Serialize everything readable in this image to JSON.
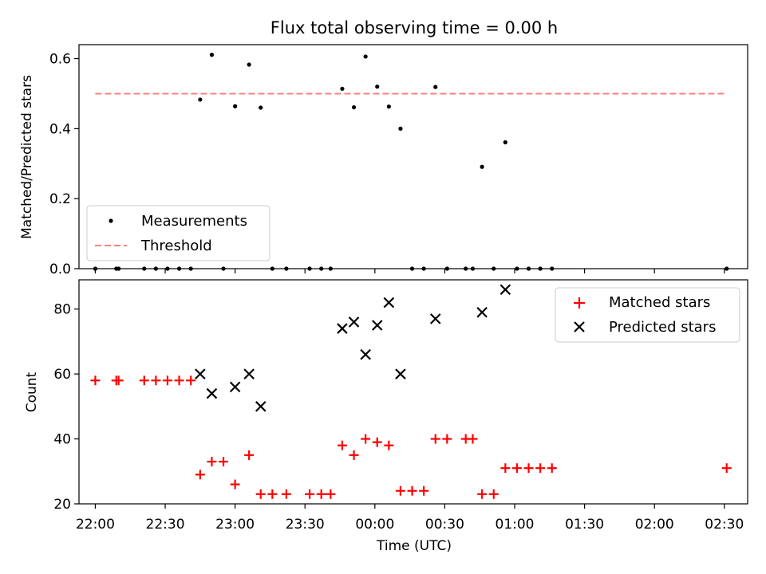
{
  "chart_data": {
    "title": "Flux total observing time = 0.00 h",
    "xlabel": "Time (UTC)",
    "x_ticks": [
      "22:00",
      "22:30",
      "23:00",
      "23:30",
      "00:00",
      "00:30",
      "01:00",
      "01:30",
      "02:00",
      "02:30"
    ],
    "x_range": [
      "21:53",
      "02:40"
    ],
    "panels": [
      {
        "type": "scatter",
        "ylabel": "Matched/Predicted stars",
        "ylim": [
          0,
          0.64
        ],
        "y_ticks": [
          "0.0",
          "0.2",
          "0.4",
          "0.6"
        ],
        "legend_position": "lower-left",
        "series": [
          {
            "name": "Measurements",
            "marker": "dot",
            "color": "#000000",
            "points": [
              [
                "22:00",
                0.0
              ],
              [
                "22:09",
                0.0
              ],
              [
                "22:10",
                0.0
              ],
              [
                "22:21",
                0.0
              ],
              [
                "22:26",
                0.0
              ],
              [
                "22:31",
                0.0
              ],
              [
                "22:36",
                0.0
              ],
              [
                "22:41",
                0.0
              ],
              [
                "22:45",
                0.483
              ],
              [
                "22:50",
                0.611
              ],
              [
                "22:55",
                0.0
              ],
              [
                "23:00",
                0.464
              ],
              [
                "23:06",
                0.583
              ],
              [
                "23:11",
                0.46
              ],
              [
                "23:16",
                0.0
              ],
              [
                "23:22",
                0.0
              ],
              [
                "23:32",
                0.0
              ],
              [
                "23:37",
                0.0
              ],
              [
                "23:41",
                0.0
              ],
              [
                "23:46",
                0.514
              ],
              [
                "23:51",
                0.461
              ],
              [
                "23:56",
                0.606
              ],
              [
                "00:01",
                0.52
              ],
              [
                "00:06",
                0.463
              ],
              [
                "00:11",
                0.4
              ],
              [
                "00:16",
                0.0
              ],
              [
                "00:21",
                0.0
              ],
              [
                "00:26",
                0.519
              ],
              [
                "00:31",
                0.0
              ],
              [
                "00:39",
                0.0
              ],
              [
                "00:42",
                0.0
              ],
              [
                "00:46",
                0.291
              ],
              [
                "00:51",
                0.0
              ],
              [
                "00:56",
                0.361
              ],
              [
                "01:01",
                0.0
              ],
              [
                "01:06",
                0.0
              ],
              [
                "01:11",
                0.0
              ],
              [
                "01:16",
                0.0
              ],
              [
                "02:31",
                0.0
              ]
            ]
          },
          {
            "name": "Threshold",
            "marker": "dashed-line",
            "color": "#ff7f7f",
            "points": [
              [
                "22:00",
                0.5
              ],
              [
                "02:31",
                0.5
              ]
            ]
          }
        ]
      },
      {
        "type": "scatter",
        "ylabel": "Count",
        "ylim": [
          20,
          89
        ],
        "y_ticks": [
          "20",
          "40",
          "60",
          "80"
        ],
        "legend_position": "upper-right",
        "series": [
          {
            "name": "Matched stars",
            "marker": "plus",
            "color": "#ff0000",
            "points": [
              [
                "22:00",
                58
              ],
              [
                "22:09",
                58
              ],
              [
                "22:10",
                58
              ],
              [
                "22:21",
                58
              ],
              [
                "22:26",
                58
              ],
              [
                "22:31",
                58
              ],
              [
                "22:36",
                58
              ],
              [
                "22:41",
                58
              ],
              [
                "22:45",
                29
              ],
              [
                "22:50",
                33
              ],
              [
                "22:55",
                33
              ],
              [
                "23:00",
                26
              ],
              [
                "23:06",
                35
              ],
              [
                "23:11",
                23
              ],
              [
                "23:16",
                23
              ],
              [
                "23:22",
                23
              ],
              [
                "23:32",
                23
              ],
              [
                "23:37",
                23
              ],
              [
                "23:41",
                23
              ],
              [
                "23:46",
                38
              ],
              [
                "23:51",
                35
              ],
              [
                "23:56",
                40
              ],
              [
                "00:01",
                39
              ],
              [
                "00:06",
                38
              ],
              [
                "00:11",
                24
              ],
              [
                "00:16",
                24
              ],
              [
                "00:21",
                24
              ],
              [
                "00:26",
                40
              ],
              [
                "00:31",
                40
              ],
              [
                "00:39",
                40
              ],
              [
                "00:42",
                40
              ],
              [
                "00:46",
                23
              ],
              [
                "00:51",
                23
              ],
              [
                "00:56",
                31
              ],
              [
                "01:01",
                31
              ],
              [
                "01:06",
                31
              ],
              [
                "01:11",
                31
              ],
              [
                "01:16",
                31
              ],
              [
                "02:31",
                31
              ]
            ]
          },
          {
            "name": "Predicted stars",
            "marker": "x",
            "color": "#000000",
            "points": [
              [
                "22:45",
                60
              ],
              [
                "22:50",
                54
              ],
              [
                "23:00",
                56
              ],
              [
                "23:06",
                60
              ],
              [
                "23:11",
                50
              ],
              [
                "23:46",
                74
              ],
              [
                "23:51",
                76
              ],
              [
                "23:56",
                66
              ],
              [
                "00:01",
                75
              ],
              [
                "00:06",
                82
              ],
              [
                "00:11",
                60
              ],
              [
                "00:26",
                77
              ],
              [
                "00:46",
                79
              ],
              [
                "00:56",
                86
              ]
            ]
          }
        ]
      }
    ]
  }
}
